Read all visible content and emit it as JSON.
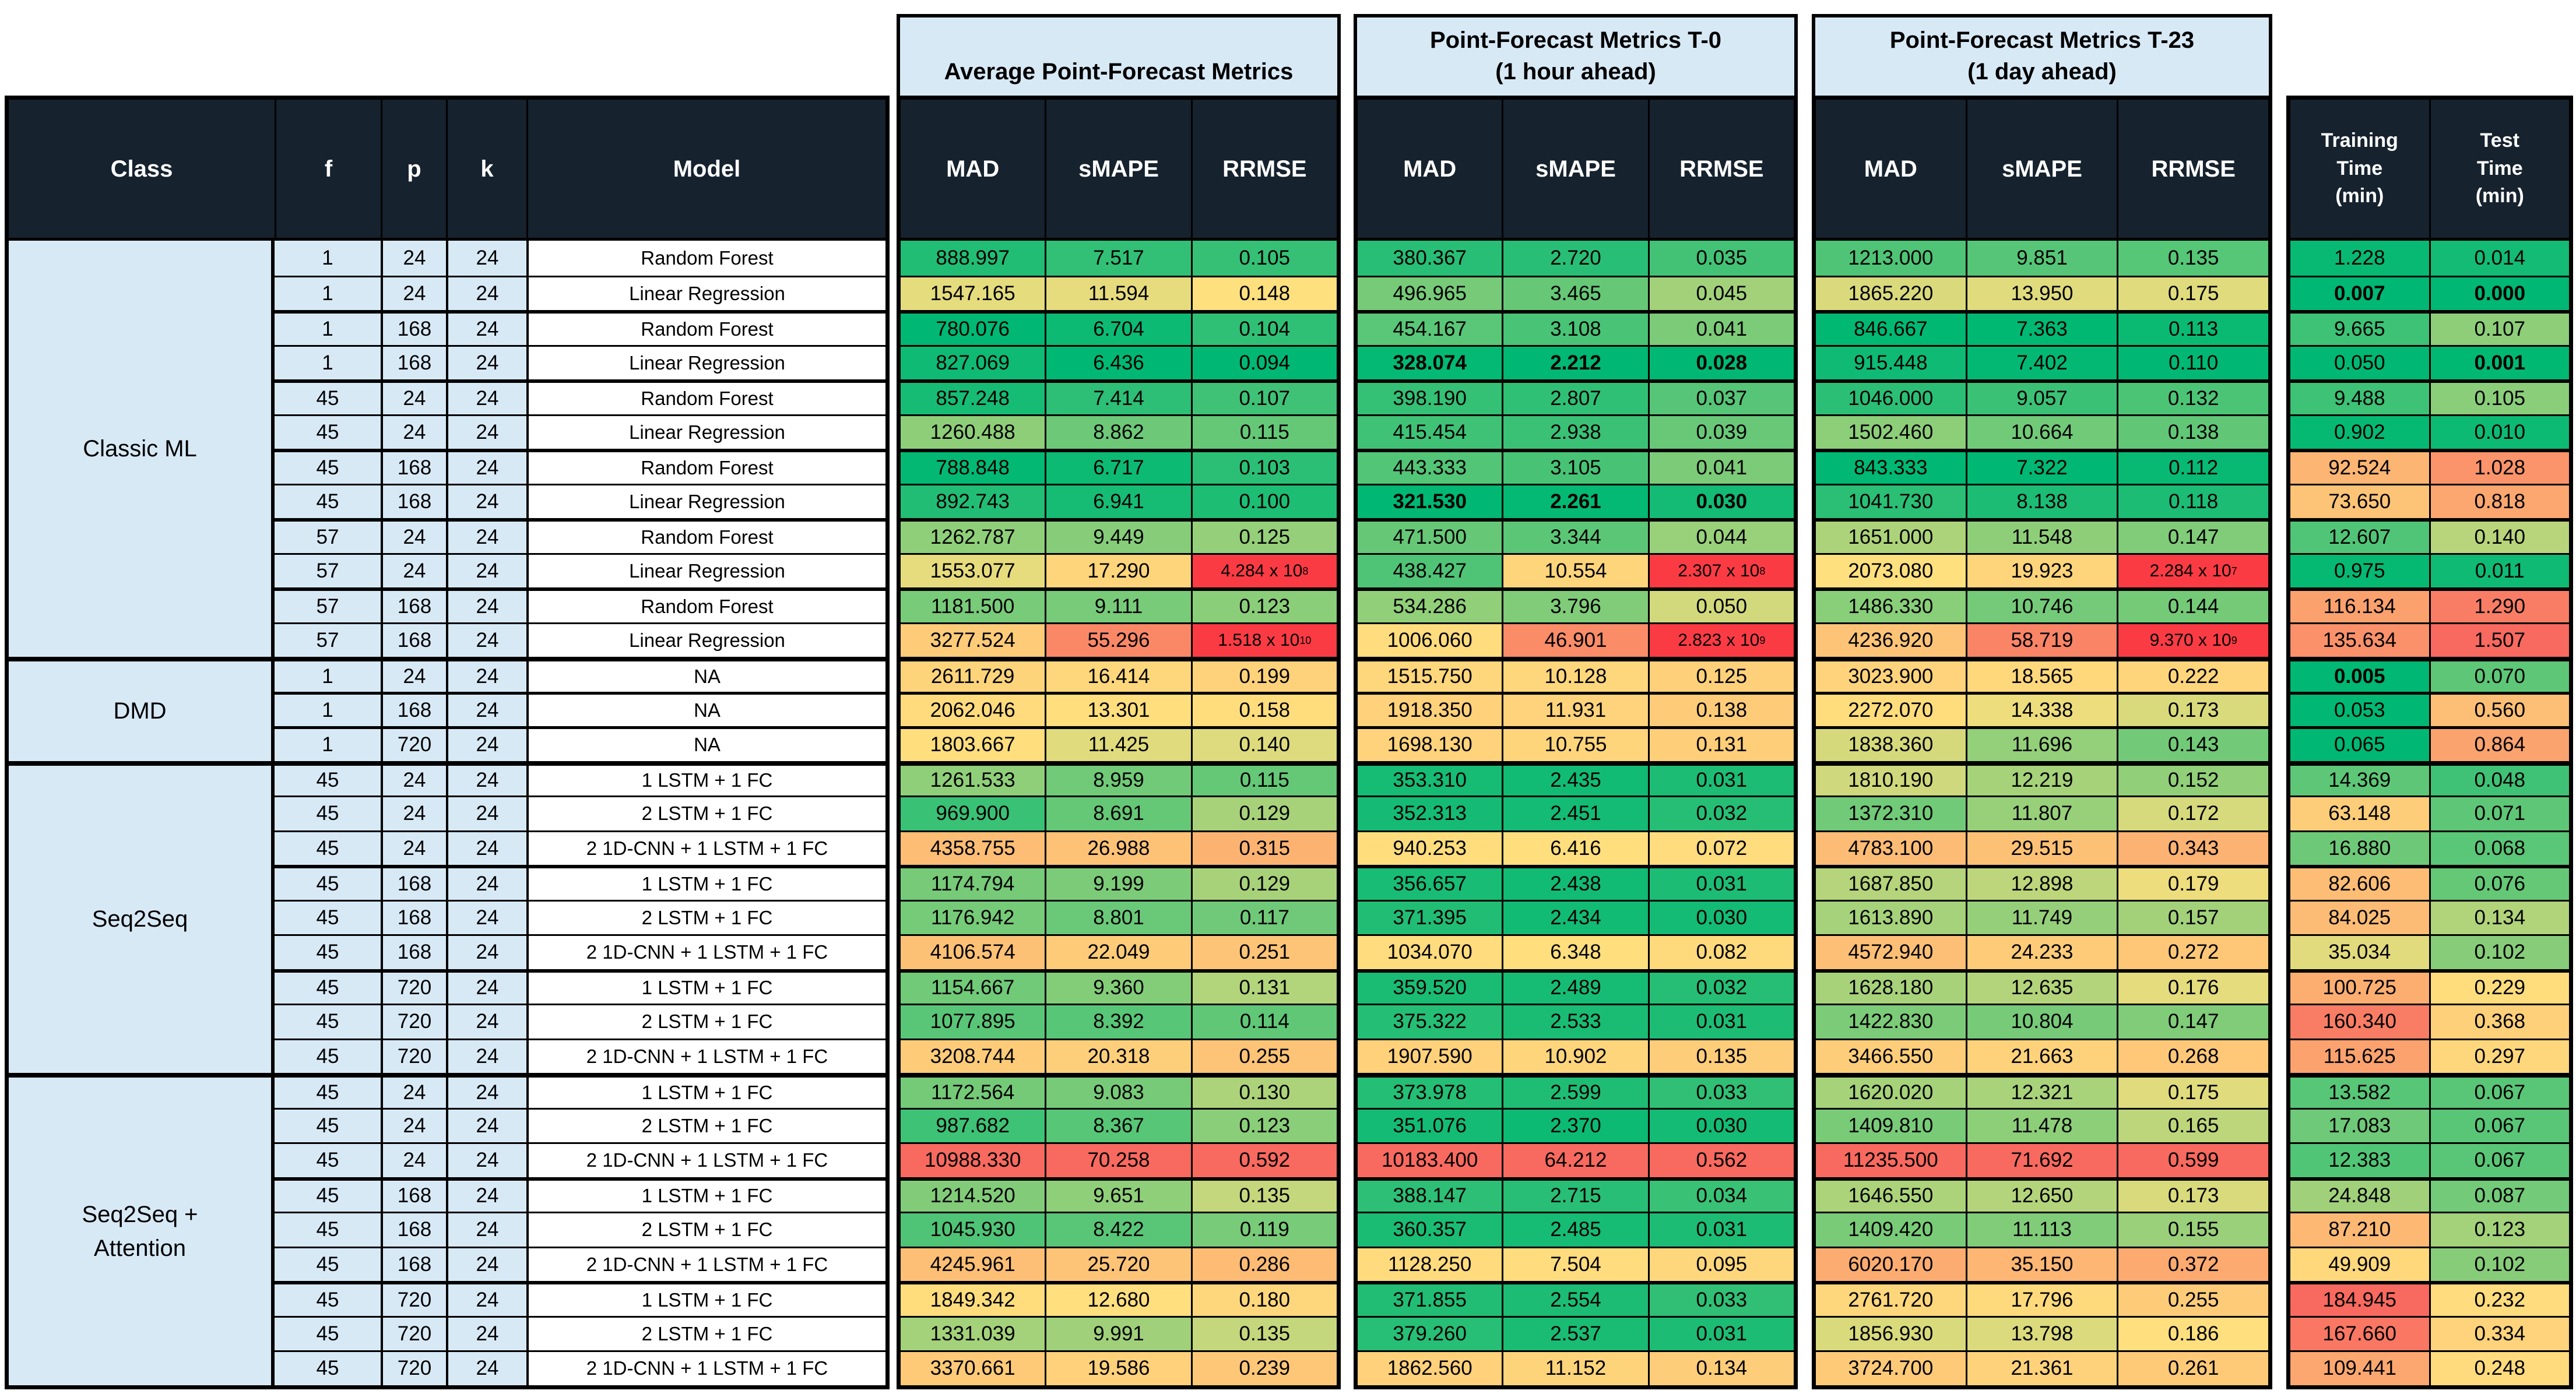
{
  "colors": {
    "header_bg": "#16222E",
    "header_text": "#FFFFFF",
    "light_blue": "#D8E9F6",
    "model_cell_bg": "#FFFFFF",
    "border": "#000000",
    "scale_green": "#00B873",
    "scale_yellow": "#FFE07E",
    "scale_red": "#F8695F",
    "sci_red": "#FB3B44"
  },
  "chart_data": {
    "type": "table",
    "group_headers": [
      {
        "lines": [
          "Average Point-Forecast Metrics"
        ]
      },
      {
        "lines": [
          "Point-Forecast Metrics T-0",
          "(1 hour ahead)"
        ]
      },
      {
        "lines": [
          "Point-Forecast Metrics T-23",
          "(1 day ahead)"
        ]
      }
    ],
    "columns": {
      "left": [
        "Class",
        "f",
        "p",
        "k",
        "Model"
      ],
      "metrics": [
        "MAD",
        "sMAPE",
        "RRMSE"
      ],
      "times": [
        [
          "Training",
          "Time",
          "(min)"
        ],
        [
          "Test",
          "Time",
          "(min)"
        ]
      ]
    },
    "cell_order": [
      "avg MAD",
      "avg sMAPE",
      "avg RRMSE",
      "t0 MAD",
      "t0 sMAPE",
      "t0 RRMSE",
      "t23 MAD",
      "t23 sMAPE",
      "t23 RRMSE",
      "training_time_min",
      "test_time_min"
    ],
    "groups": [
      {
        "class": "Classic ML",
        "rows": [
          {
            "f": "1",
            "p": "24",
            "k": "24",
            "model": "Random Forest",
            "cells": [
              "888.997",
              "7.517",
              "0.105",
              "380.367",
              "2.720",
              "0.035",
              "1213.000",
              "9.851",
              "0.135",
              "1.228",
              "0.014"
            ],
            "bold": []
          },
          {
            "f": "1",
            "p": "24",
            "k": "24",
            "model": "Linear Regression",
            "cells": [
              "1547.165",
              "11.594",
              "0.148",
              "496.965",
              "3.465",
              "0.045",
              "1865.220",
              "13.950",
              "0.175",
              "0.007",
              "0.000"
            ],
            "bold": [
              9,
              10
            ]
          },
          {
            "f": "1",
            "p": "168",
            "k": "24",
            "model": "Random Forest",
            "cells": [
              "780.076",
              "6.704",
              "0.104",
              "454.167",
              "3.108",
              "0.041",
              "846.667",
              "7.363",
              "0.113",
              "9.665",
              "0.107"
            ],
            "bold": []
          },
          {
            "f": "1",
            "p": "168",
            "k": "24",
            "model": "Linear Regression",
            "cells": [
              "827.069",
              "6.436",
              "0.094",
              "328.074",
              "2.212",
              "0.028",
              "915.448",
              "7.402",
              "0.110",
              "0.050",
              "0.001"
            ],
            "bold": [
              3,
              4,
              5,
              10
            ]
          },
          {
            "f": "45",
            "p": "24",
            "k": "24",
            "model": "Random Forest",
            "cells": [
              "857.248",
              "7.414",
              "0.107",
              "398.190",
              "2.807",
              "0.037",
              "1046.000",
              "9.057",
              "0.132",
              "9.488",
              "0.105"
            ],
            "bold": []
          },
          {
            "f": "45",
            "p": "24",
            "k": "24",
            "model": "Linear Regression",
            "cells": [
              "1260.488",
              "8.862",
              "0.115",
              "415.454",
              "2.938",
              "0.039",
              "1502.460",
              "10.664",
              "0.138",
              "0.902",
              "0.010"
            ],
            "bold": []
          },
          {
            "f": "45",
            "p": "168",
            "k": "24",
            "model": "Random Forest",
            "cells": [
              "788.848",
              "6.717",
              "0.103",
              "443.333",
              "3.105",
              "0.041",
              "843.333",
              "7.322",
              "0.112",
              "92.524",
              "1.028"
            ],
            "bold": []
          },
          {
            "f": "45",
            "p": "168",
            "k": "24",
            "model": "Linear Regression",
            "cells": [
              "892.743",
              "6.941",
              "0.100",
              "321.530",
              "2.261",
              "0.030",
              "1041.730",
              "8.138",
              "0.118",
              "73.650",
              "0.818"
            ],
            "bold": [
              3,
              4,
              5
            ]
          },
          {
            "f": "57",
            "p": "24",
            "k": "24",
            "model": "Random Forest",
            "cells": [
              "1262.787",
              "9.449",
              "0.125",
              "471.500",
              "3.344",
              "0.044",
              "1651.000",
              "11.548",
              "0.147",
              "12.607",
              "0.140"
            ],
            "bold": []
          },
          {
            "f": "57",
            "p": "24",
            "k": "24",
            "model": "Linear Regression",
            "cells": [
              "1553.077",
              "17.290",
              "4.284 x 10^8",
              "438.427",
              "10.554",
              "2.307 x 10^8",
              "2073.080",
              "19.923",
              "2.284 x 10^7",
              "0.975",
              "0.011"
            ],
            "bold": []
          },
          {
            "f": "57",
            "p": "168",
            "k": "24",
            "model": "Random Forest",
            "cells": [
              "1181.500",
              "9.111",
              "0.123",
              "534.286",
              "3.796",
              "0.050",
              "1486.330",
              "10.746",
              "0.144",
              "116.134",
              "1.290"
            ],
            "bold": []
          },
          {
            "f": "57",
            "p": "168",
            "k": "24",
            "model": "Linear Regression",
            "cells": [
              "3277.524",
              "55.296",
              "1.518 x 10^10",
              "1006.060",
              "46.901",
              "2.823 x 10^9",
              "4236.920",
              "58.719",
              "9.370 x 10^9",
              "135.634",
              "1.507"
            ],
            "bold": []
          }
        ]
      },
      {
        "class": "DMD",
        "rows": [
          {
            "f": "1",
            "p": "24",
            "k": "24",
            "model": "NA",
            "cells": [
              "2611.729",
              "16.414",
              "0.199",
              "1515.750",
              "10.128",
              "0.125",
              "3023.900",
              "18.565",
              "0.222",
              "0.005",
              "0.070"
            ],
            "bold": [
              9
            ]
          },
          {
            "f": "1",
            "p": "168",
            "k": "24",
            "model": "NA",
            "cells": [
              "2062.046",
              "13.301",
              "0.158",
              "1918.350",
              "11.931",
              "0.138",
              "2272.070",
              "14.338",
              "0.173",
              "0.053",
              "0.560"
            ],
            "bold": []
          },
          {
            "f": "1",
            "p": "720",
            "k": "24",
            "model": "NA",
            "cells": [
              "1803.667",
              "11.425",
              "0.140",
              "1698.130",
              "10.755",
              "0.131",
              "1838.360",
              "11.696",
              "0.143",
              "0.065",
              "0.864"
            ],
            "bold": []
          }
        ]
      },
      {
        "class": "Seq2Seq",
        "rows": [
          {
            "f": "45",
            "p": "24",
            "k": "24",
            "model": "1 LSTM + 1 FC",
            "cells": [
              "1261.533",
              "8.959",
              "0.115",
              "353.310",
              "2.435",
              "0.031",
              "1810.190",
              "12.219",
              "0.152",
              "14.369",
              "0.048"
            ],
            "bold": []
          },
          {
            "f": "45",
            "p": "24",
            "k": "24",
            "model": "2 LSTM + 1 FC",
            "cells": [
              "969.900",
              "8.691",
              "0.129",
              "352.313",
              "2.451",
              "0.032",
              "1372.310",
              "11.807",
              "0.172",
              "63.148",
              "0.071"
            ],
            "bold": []
          },
          {
            "f": "45",
            "p": "24",
            "k": "24",
            "model": "2 1D-CNN + 1 LSTM + 1 FC",
            "cells": [
              "4358.755",
              "26.988",
              "0.315",
              "940.253",
              "6.416",
              "0.072",
              "4783.100",
              "29.515",
              "0.343",
              "16.880",
              "0.068"
            ],
            "bold": []
          },
          {
            "f": "45",
            "p": "168",
            "k": "24",
            "model": "1 LSTM + 1 FC",
            "cells": [
              "1174.794",
              "9.199",
              "0.129",
              "356.657",
              "2.438",
              "0.031",
              "1687.850",
              "12.898",
              "0.179",
              "82.606",
              "0.076"
            ],
            "bold": []
          },
          {
            "f": "45",
            "p": "168",
            "k": "24",
            "model": "2 LSTM + 1 FC",
            "cells": [
              "1176.942",
              "8.801",
              "0.117",
              "371.395",
              "2.434",
              "0.030",
              "1613.890",
              "11.749",
              "0.157",
              "84.025",
              "0.134"
            ],
            "bold": []
          },
          {
            "f": "45",
            "p": "168",
            "k": "24",
            "model": "2 1D-CNN + 1 LSTM + 1 FC",
            "cells": [
              "4106.574",
              "22.049",
              "0.251",
              "1034.070",
              "6.348",
              "0.082",
              "4572.940",
              "24.233",
              "0.272",
              "35.034",
              "0.102"
            ],
            "bold": []
          },
          {
            "f": "45",
            "p": "720",
            "k": "24",
            "model": "1 LSTM + 1 FC",
            "cells": [
              "1154.667",
              "9.360",
              "0.131",
              "359.520",
              "2.489",
              "0.032",
              "1628.180",
              "12.635",
              "0.176",
              "100.725",
              "0.229"
            ],
            "bold": []
          },
          {
            "f": "45",
            "p": "720",
            "k": "24",
            "model": "2 LSTM + 1 FC",
            "cells": [
              "1077.895",
              "8.392",
              "0.114",
              "375.322",
              "2.533",
              "0.031",
              "1422.830",
              "10.804",
              "0.147",
              "160.340",
              "0.368"
            ],
            "bold": []
          },
          {
            "f": "45",
            "p": "720",
            "k": "24",
            "model": "2 1D-CNN + 1 LSTM + 1 FC",
            "cells": [
              "3208.744",
              "20.318",
              "0.255",
              "1907.590",
              "10.902",
              "0.135",
              "3466.550",
              "21.663",
              "0.268",
              "115.625",
              "0.297"
            ],
            "bold": []
          }
        ]
      },
      {
        "class": "Seq2Seq + Attention",
        "rows": [
          {
            "f": "45",
            "p": "24",
            "k": "24",
            "model": "1 LSTM + 1 FC",
            "cells": [
              "1172.564",
              "9.083",
              "0.130",
              "373.978",
              "2.599",
              "0.033",
              "1620.020",
              "12.321",
              "0.175",
              "13.582",
              "0.067"
            ],
            "bold": []
          },
          {
            "f": "45",
            "p": "24",
            "k": "24",
            "model": "2 LSTM + 1 FC",
            "cells": [
              "987.682",
              "8.367",
              "0.123",
              "351.076",
              "2.370",
              "0.030",
              "1409.810",
              "11.478",
              "0.165",
              "17.083",
              "0.067"
            ],
            "bold": []
          },
          {
            "f": "45",
            "p": "24",
            "k": "24",
            "model": "2 1D-CNN + 1 LSTM + 1 FC",
            "cells": [
              "10988.330",
              "70.258",
              "0.592",
              "10183.400",
              "64.212",
              "0.562",
              "11235.500",
              "71.692",
              "0.599",
              "12.383",
              "0.067"
            ],
            "bold": []
          },
          {
            "f": "45",
            "p": "168",
            "k": "24",
            "model": "1 LSTM + 1 FC",
            "cells": [
              "1214.520",
              "9.651",
              "0.135",
              "388.147",
              "2.715",
              "0.034",
              "1646.550",
              "12.650",
              "0.173",
              "24.848",
              "0.087"
            ],
            "bold": []
          },
          {
            "f": "45",
            "p": "168",
            "k": "24",
            "model": "2 LSTM + 1 FC",
            "cells": [
              "1045.930",
              "8.422",
              "0.119",
              "360.357",
              "2.485",
              "0.031",
              "1409.420",
              "11.113",
              "0.155",
              "87.210",
              "0.123"
            ],
            "bold": []
          },
          {
            "f": "45",
            "p": "168",
            "k": "24",
            "model": "2 1D-CNN + 1 LSTM + 1 FC",
            "cells": [
              "4245.961",
              "25.720",
              "0.286",
              "1128.250",
              "7.504",
              "0.095",
              "6020.170",
              "35.150",
              "0.372",
              "49.909",
              "0.102"
            ],
            "bold": []
          },
          {
            "f": "45",
            "p": "720",
            "k": "24",
            "model": "1 LSTM + 1 FC",
            "cells": [
              "1849.342",
              "12.680",
              "0.180",
              "371.855",
              "2.554",
              "0.033",
              "2761.720",
              "17.796",
              "0.255",
              "184.945",
              "0.232"
            ],
            "bold": []
          },
          {
            "f": "45",
            "p": "720",
            "k": "24",
            "model": "2 LSTM + 1 FC",
            "cells": [
              "1331.039",
              "9.991",
              "0.135",
              "379.260",
              "2.537",
              "0.031",
              "1856.930",
              "13.798",
              "0.186",
              "167.660",
              "0.334"
            ],
            "bold": []
          },
          {
            "f": "45",
            "p": "720",
            "k": "24",
            "model": "2 1D-CNN + 1 LSTM + 1 FC",
            "cells": [
              "3370.661",
              "19.586",
              "0.239",
              "1862.560",
              "11.152",
              "0.134",
              "3724.700",
              "21.361",
              "0.261",
              "109.441",
              "0.248"
            ],
            "bold": []
          }
        ]
      }
    ]
  }
}
